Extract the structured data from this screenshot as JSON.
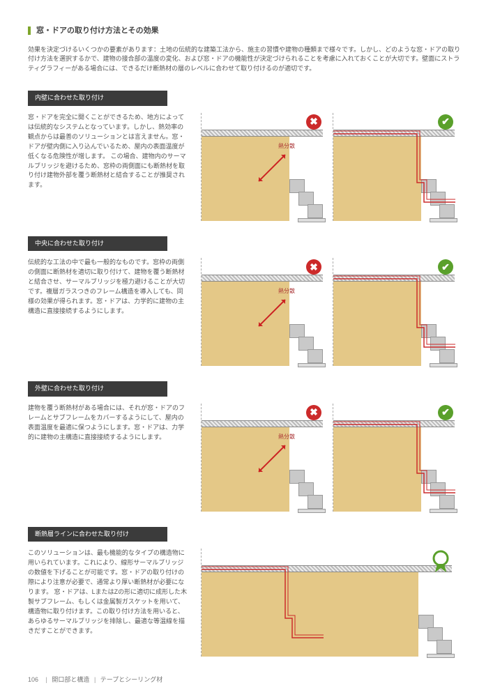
{
  "page": {
    "title": "窓・ドアの取り付け方法とその効果",
    "intro": "効果を決定づけるいくつかの要素があります：土地の伝統的な建築工法から、施主の習慣や建物の種類まで様々です。しかし、どのような窓・ドアの取り付け方法を選択するかで、建物の接合部の温度の変化、および窓・ドアの機能性が決定づけられることを考慮に入れておくことが大切です。壁面にストラティグラフィーがある場合には、できるだけ断熱材の層のレベルに合わせて取り付けるのが適切です。"
  },
  "sections": [
    {
      "header": "内壁に合わせた取り付け",
      "text": "窓・ドアを完全に開くことができるため、地方によっては伝統的なシステムとなっています。しかし、熱効率の観点からは最善のソリューションとは言えません。窓・ドアが壁内側に入り込んでいるため、屋内の表面温度が低くなる危険性が増します。\nこの場合、建物内のサーマルブリッジを避けるため、窓枠の両側面にも断熱材を取り付け建物外部を覆う断熱材と結合することが推奨されます。",
      "arrow_label": "熱分散",
      "result": "bad-good"
    },
    {
      "header": "中央に合わせた取り付け",
      "text": "伝統的な工法の中で最も一般的なものです。窓枠の両側の側面に断熱材を適切に取り付けて、建物を覆う断熱材と結合させ、サーマルブリッジを極力避けることが大切です。複層ガラスつきのフレーム構造を導入しても、同様の効果が得られます。窓・ドアは、力学的に建物の主構造に直接接続するようにします。",
      "arrow_label": "熱分散",
      "result": "bad-good"
    },
    {
      "header": "外壁に合わせた取り付け",
      "text": "建物を覆う断熱材がある場合には、それが窓・ドアのフレームとサブフレームをカバーするようにして、屋内の表面温度を最適に保つようにします。窓・ドアは、力学的に建物の主構造に直接接続するようにします。",
      "arrow_label": "熱分散",
      "result": "bad-good"
    },
    {
      "header": "断熱層ラインに合わせた取り付け",
      "text": "このソリューションは、最も機能的なタイプの構造物に用いられています。これにより、線形サーマルブリッジの数値を下げることが可能です。窓・ドアの取り付けの際により注意が必要で、通常より厚い断熱材が必要になります。\n窓・ドアは、LまたはZの形に適切に成形した木製サブフレーム、もしくは金属製ガスケットを用いて、構造物に取り付けます。この取り付け方法を用いると、あらゆるサーマルブリッジを排除し、最適な等温線を描きだすことができます。",
      "arrow_label": "",
      "result": "award"
    }
  ],
  "diagram_style": {
    "wall_color": "#e4c887",
    "hatch_light": "#eeeeee",
    "hatch_dark": "#bbbbbb",
    "block_bg": "#c9c9c9",
    "block_border": "#999999",
    "arrow_color": "#cc2222",
    "red_line_color": "#cc2a2a",
    "dashed_border": "#aaaaaa",
    "bad_badge": "#cc2a2a",
    "good_badge": "#5aa02b",
    "award_badge": "#5aa02b"
  },
  "icons": {
    "bad": "✖",
    "good": "✔"
  },
  "footer": {
    "page_number": "106",
    "crumb1": "開口部と構造",
    "crumb2": "テープとシーリング材"
  }
}
